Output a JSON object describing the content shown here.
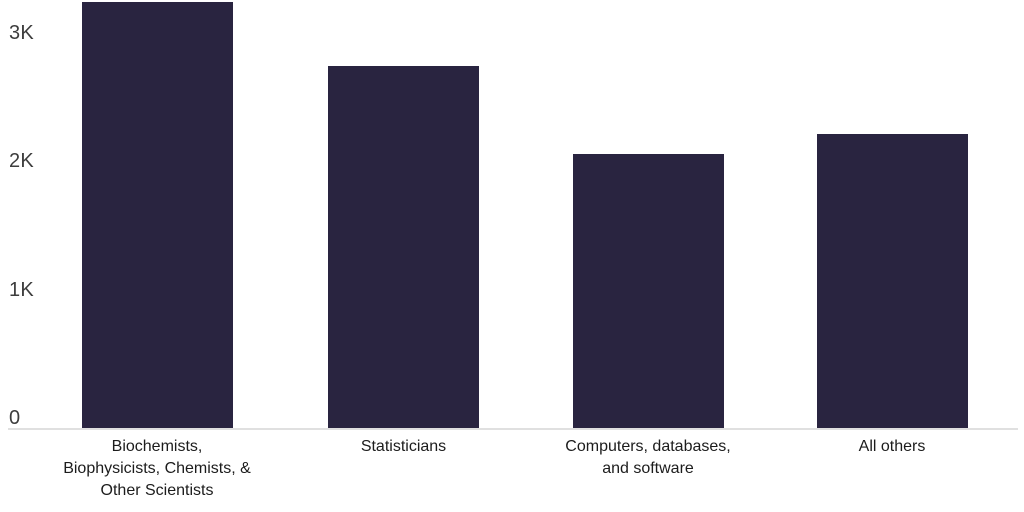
{
  "chart_data": {
    "type": "bar",
    "title": "",
    "xlabel": "",
    "ylabel": "",
    "categories": [
      "Biochemists, Biophysicists, Chemists, & Other Scientists",
      "Statisticians",
      "Computers, databases, and software",
      "All others"
    ],
    "category_display_lines": [
      [
        "Biochemists,",
        "Biophysicists, Chemists, &",
        "Other Scientists"
      ],
      [
        "Statisticians"
      ],
      [
        "Computers, databases,",
        "and software"
      ],
      [
        "All others"
      ]
    ],
    "values": [
      3240,
      2740,
      2060,
      2210
    ],
    "ylim": [
      0,
      3350
    ],
    "y_ticks": [
      {
        "label": "0",
        "value": 0
      },
      {
        "label": "1K",
        "value": 1000
      },
      {
        "label": "2K",
        "value": 2000
      },
      {
        "label": "3K",
        "value": 3000
      }
    ],
    "grid": false,
    "legend": false,
    "bar_color": "#292440",
    "axis_line_color": "#e0e0e0",
    "tick_label_color": "#3d3d3d",
    "category_label_color": "#1c1c1c",
    "background_color": "#ffffff"
  }
}
